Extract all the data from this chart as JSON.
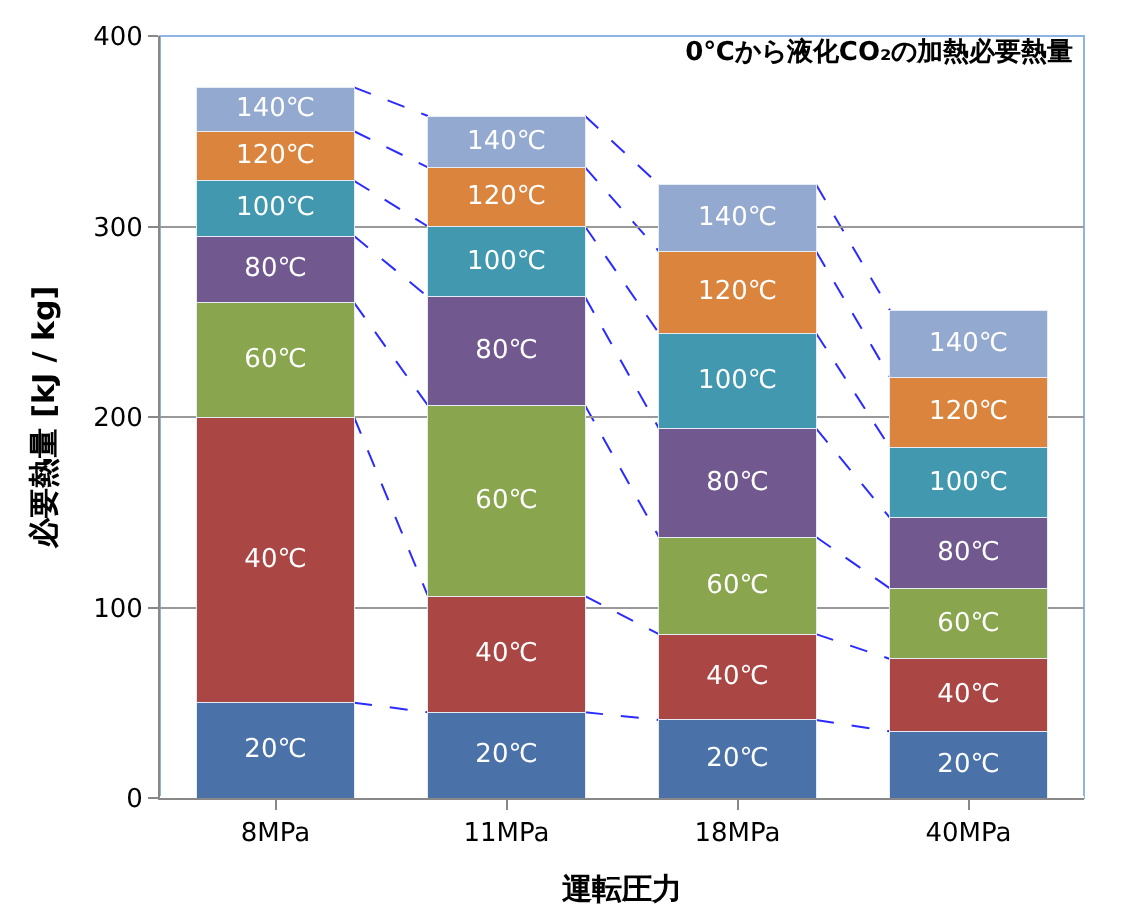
{
  "chart_data": {
    "type": "bar",
    "stacked": true,
    "title": "0℃から液化CO₂の加熱必要熱量",
    "xlabel": "運転圧力",
    "ylabel": "必要熱量 [kJ / kg]",
    "categories": [
      "8MPa",
      "11MPa",
      "18MPa",
      "40MPa"
    ],
    "series": [
      {
        "name": "20℃",
        "color": "#4a72a8",
        "values": [
          50,
          45,
          41,
          35
        ]
      },
      {
        "name": "40℃",
        "color": "#aa4643",
        "values": [
          150,
          61,
          45,
          38
        ]
      },
      {
        "name": "60℃",
        "color": "#89a54e",
        "values": [
          60,
          100,
          51,
          37
        ]
      },
      {
        "name": "80℃",
        "color": "#71588f",
        "values": [
          35,
          57,
          57,
          37
        ]
      },
      {
        "name": "100℃",
        "color": "#4198af",
        "values": [
          29,
          37,
          50,
          37
        ]
      },
      {
        "name": "120℃",
        "color": "#db843d",
        "values": [
          26,
          31,
          43,
          37
        ]
      },
      {
        "name": "140℃",
        "color": "#93a9cf",
        "values": [
          23,
          27,
          35,
          35
        ]
      }
    ],
    "ylim": [
      0,
      400
    ],
    "yticks": [
      0,
      100,
      200,
      300,
      400
    ],
    "grid": "y",
    "legend": false
  }
}
